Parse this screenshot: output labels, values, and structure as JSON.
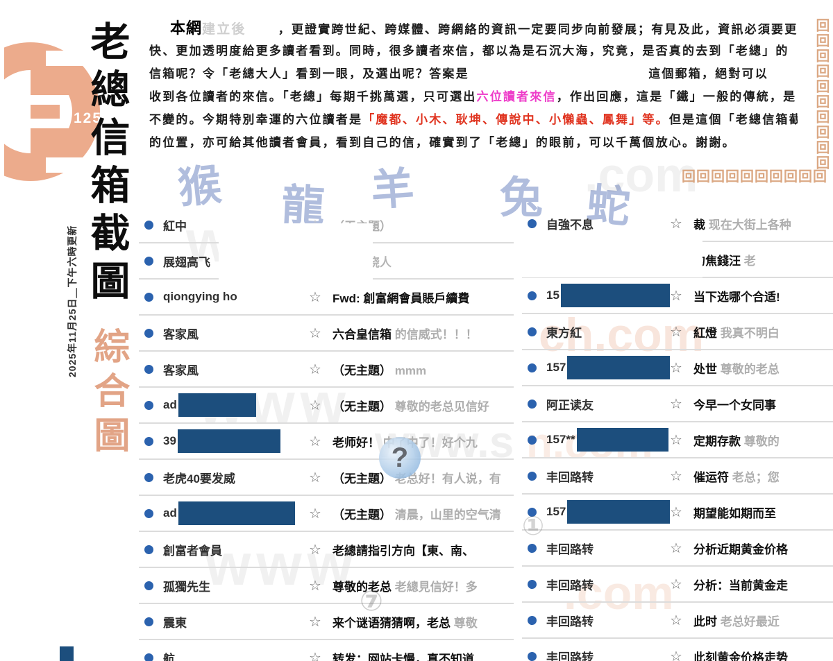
{
  "page": {
    "logo_number": "125",
    "date_note": "2025年11月25日＿下午六時更新"
  },
  "sidebar": {
    "title_black": "老總信箱截圖",
    "title_accent": "綜合圖"
  },
  "decor": {
    "meander_v": "回回回回回回回回回回",
    "meander_h": "回回回回回回回回回回"
  },
  "glyphs": {
    "star": "☆",
    "question_mark": "?",
    "circle_seven": "⑦",
    "circle_one": "①"
  },
  "intro": {
    "line1_bold": "本網",
    "line1_ghost": "建立後",
    "line1_rest": "，更證實跨世紀、跨媒體、跨網絡的資訊一定要同步向前發展；有見及此，資訊必須要更",
    "line2": "快、更加透明度給更多讀者看到。同時，很多讀者來信，都以為是石沉大海，究竟，是否真的去到「老總」的",
    "line3_a": "信箱呢？令「老總大人」看到一眼，及選出呢？答案是",
    "line3_b": "這個郵箱，絕對可以",
    "line4_a": "收到各位讀者的來信。「老總」每期千挑萬選，只可選出",
    "line4_magenta": "六位讀者來信",
    "line4_b": "，作出回應，這是「鐵」一般的傳統，是",
    "line5_a": "不變的。今期特別幸運的六位讀者是",
    "line5_red": "「魔都、小木、耿坤、傳說中、小懶蟲、鳳舞」等。",
    "line5_b": "但是這個「老總信箱截圖」",
    "line6": "的位置，亦可給其他讀者會員，看到自己的信，確實到了「老總」的眼前，可以千萬個放心。謝謝。"
  },
  "watermarks": {
    "zodiac": [
      "猴",
      "龍",
      "羊",
      "兔",
      "蛇"
    ],
    "texts": [
      "www",
      "www",
      "www",
      "www.s",
      ".com",
      "ch.com",
      ".com",
      "n.com"
    ]
  },
  "left_list": {
    "rows": [
      {
        "sender": "紅中",
        "ghost": true,
        "subject_bold": "",
        "subject_faint": "（无主題）"
      },
      {
        "sender": "展翅高飞",
        "ghost": true,
        "subject_bold": "岁月不饶人",
        "subject_faint": ""
      },
      {
        "sender": "qiongying ho",
        "subject_bold": "Fwd: 創富網會員賬戶續費",
        "subject_faint": ""
      },
      {
        "sender": "客家風",
        "subject_bold": "六合皇信箱",
        "subject_faint": "的信威式！！！"
      },
      {
        "sender": "客家風",
        "subject_bold": "（无主題）",
        "subject_faint": "mmm"
      },
      {
        "sender": "ad",
        "redact_w": 112,
        "subject_bold": "（无主題）",
        "subject_faint": "尊敬的老总见信好"
      },
      {
        "sender": "39",
        "redact_w": 148,
        "subject_bold": "老师好！",
        "subject_faint": "中了中了！好个九"
      },
      {
        "sender": "老虎40要发威",
        "subject_bold": "（无主題）",
        "subject_faint": "老总好！有人说，有"
      },
      {
        "sender": "ad",
        "redact_w": 168,
        "subject_bold": "（无主題）",
        "subject_faint": "清晨，山里的空气清"
      },
      {
        "sender": "創富者會員",
        "subject_bold": "老總請指引方向【東、南、",
        "subject_faint": ""
      },
      {
        "sender": "孤獨先生",
        "subject_bold": "尊敬的老总",
        "subject_faint": "老總見信好！多"
      },
      {
        "sender": "震東",
        "subject_bold": "来个谜语猜猜啊，老总",
        "subject_faint": "尊敬"
      },
      {
        "sender": "航",
        "subject_bold": "转发：网站卡慢，真不知道",
        "subject_faint": ""
      }
    ]
  },
  "right_list": {
    "rows": [
      {
        "sender": "自強不息",
        "subject_bold": "裁",
        "subject_faint": "现在大街上各种"
      },
      {
        "sender": "",
        "subject_bold": "的焦錢汪",
        "subject_faint": "老"
      },
      {
        "sender": "15",
        "redact_w": 198,
        "subject_bold": "当下选哪个合适!",
        "subject_faint": ""
      },
      {
        "sender": "東方紅",
        "subject_bold": "紅燈",
        "subject_faint": "我真不明白"
      },
      {
        "sender": "157",
        "redact_w": 148,
        "subject_bold": "处世",
        "subject_faint": "尊敬的老总"
      },
      {
        "sender": "阿正读友",
        "subject_bold": "今早一个女同事",
        "subject_faint": ""
      },
      {
        "sender": "157**",
        "redact_w": 132,
        "subject_bold": "定期存款",
        "subject_faint": "尊敬的"
      },
      {
        "sender": "丰回路转",
        "subject_bold": "催运符",
        "subject_faint": "老总；您"
      },
      {
        "sender": "157",
        "redact_w": 168,
        "subject_bold": "期望能如期而至",
        "subject_faint": ""
      },
      {
        "sender": "丰回路转",
        "subject_bold": "分析近期黄金价格",
        "subject_faint": ""
      },
      {
        "sender": "丰回路转",
        "subject_bold": "分析：当前黄金走",
        "subject_faint": ""
      },
      {
        "sender": "丰回路转",
        "subject_bold": "此时",
        "subject_faint": "老总好最近"
      },
      {
        "sender": "丰回路转",
        "subject_bold": "此刻黄金价格走势",
        "subject_faint": ""
      }
    ]
  }
}
